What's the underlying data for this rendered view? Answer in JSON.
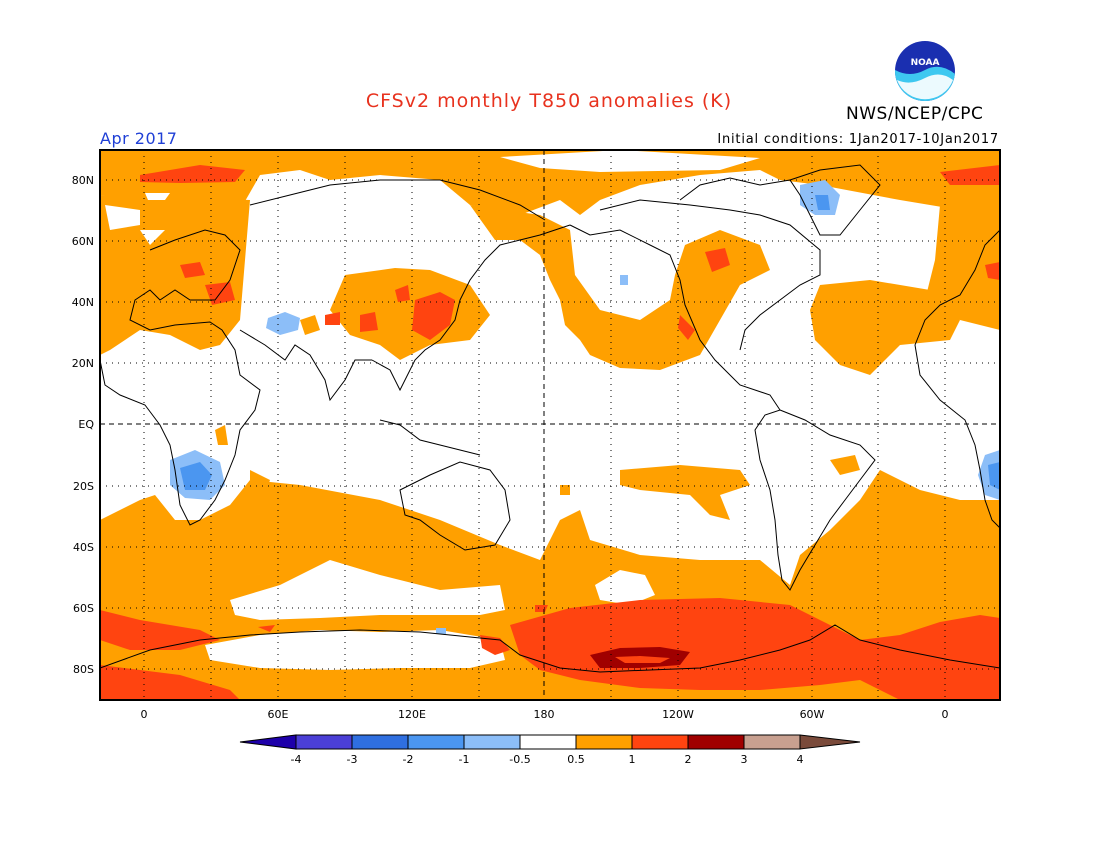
{
  "header": {
    "title": "CFSv2 monthly T850 anomalies (K)",
    "agency": "NWS/NCEP/CPC",
    "period": "Apr 2017",
    "initial_conditions": "Initial conditions: 1Jan2017-10Jan2017",
    "logo_text": "NOAA"
  },
  "map": {
    "projection": "cylindrical equidistant",
    "lat_labels": [
      "80N",
      "60N",
      "40N",
      "20N",
      "EQ",
      "20S",
      "40S",
      "60S",
      "80S"
    ],
    "lon_labels": [
      "0",
      "60E",
      "120E",
      "180",
      "120W",
      "60W",
      "0"
    ]
  },
  "colorbar": {
    "labels": [
      "-4",
      "-3",
      "-2",
      "-1",
      "-0.5",
      "0.5",
      "1",
      "2",
      "3",
      "4"
    ],
    "colors": [
      "#1e00aa",
      "#4b3fd6",
      "#2f6fe0",
      "#4b96f0",
      "#8cbef8",
      "#ffffff",
      "#ffa000",
      "#ff4410",
      "#a00000",
      "#c8a090",
      "#7a4a3a"
    ]
  },
  "colors": {
    "title": "#e8321e",
    "period": "#1f3fd6",
    "warm1": "#ffa000",
    "warm2": "#ff4410",
    "warm3": "#a00000",
    "cool1": "#8cbef8",
    "cool2": "#4b96f0"
  }
}
